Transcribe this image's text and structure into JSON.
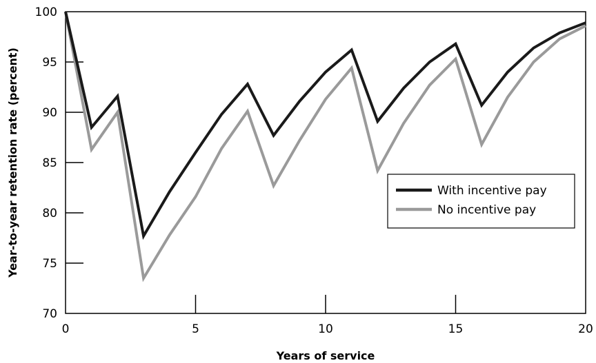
{
  "chart_data": {
    "type": "line",
    "title": "",
    "xlabel": "Years of service",
    "ylabel": "Year-to-year retention rate (percent)",
    "xlim": [
      0,
      20
    ],
    "ylim": [
      70,
      100
    ],
    "xticks": [
      0,
      5,
      10,
      15,
      20
    ],
    "yticks": [
      70,
      75,
      80,
      85,
      90,
      95,
      100
    ],
    "grid": false,
    "legend_position": "center-right",
    "x": [
      0,
      1,
      2,
      3,
      4,
      5,
      6,
      7,
      8,
      9,
      10,
      11,
      12,
      13,
      14,
      15,
      16,
      17,
      18,
      19,
      20
    ],
    "series": [
      {
        "name": "With incentive pay",
        "color": "#1a1a1a",
        "values": [
          100,
          88.5,
          91.6,
          77.7,
          82.1,
          86.0,
          89.8,
          92.8,
          87.7,
          91.1,
          94.0,
          96.2,
          89.1,
          92.4,
          95.0,
          96.8,
          90.7,
          94.0,
          96.4,
          97.9,
          98.9
        ]
      },
      {
        "name": "No incentive pay",
        "color": "#9a9a9a",
        "values": [
          100,
          86.3,
          90.0,
          73.5,
          77.8,
          81.6,
          86.4,
          90.1,
          82.7,
          87.2,
          91.3,
          94.4,
          84.2,
          88.9,
          92.7,
          95.3,
          86.8,
          91.5,
          95.0,
          97.3,
          98.6
        ]
      }
    ]
  }
}
